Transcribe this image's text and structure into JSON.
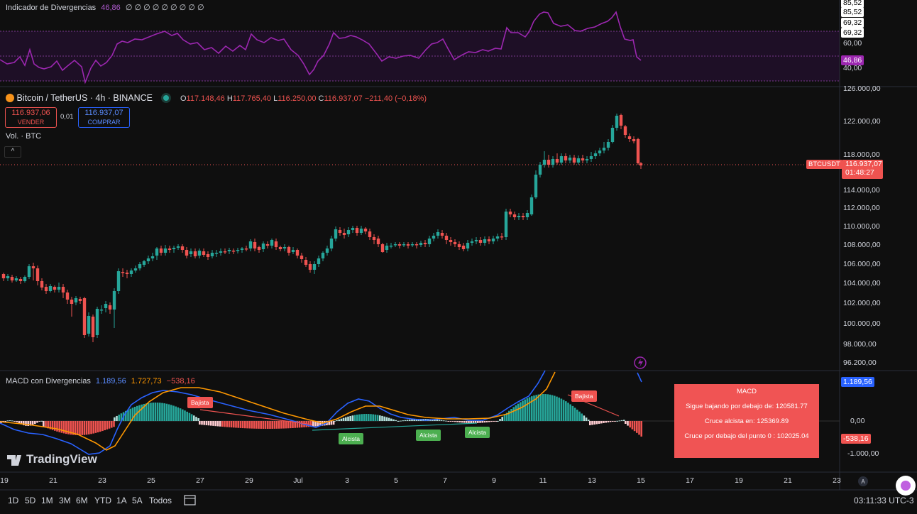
{
  "rsi_panel": {
    "title": "Indicador de Divergencias",
    "value": "46,86",
    "placeholders": "∅ ∅ ∅ ∅ ∅ ∅ ∅ ∅ ∅",
    "axis_labels": [
      "85,52",
      "85,52",
      "69,32",
      "69,32",
      "60,00",
      "46,86",
      "40,00"
    ],
    "current_tag": "46,86",
    "line_color": "#9c27b0"
  },
  "symbol_header": {
    "symbol": "Bitcoin / TetherUS · 4h · BINANCE",
    "open_label": "O",
    "open": "117.148,46",
    "high_label": "H",
    "high": "117.765,40",
    "low_label": "L",
    "low": "116.250,00",
    "close_label": "C",
    "close": "116.937,07",
    "change": "−211,40 (−0,18%)"
  },
  "trade_buttons": {
    "sell_price": "116.937,06",
    "sell_label": "VENDER",
    "spread": "0,01",
    "buy_price": "116.937,07",
    "buy_label": "COMPRAR"
  },
  "volume_label": "Vol. · BTC",
  "collapse_icon": "chevron-up-icon",
  "price_axis": {
    "labels": [
      "126.000,00",
      "122.000,00",
      "118.000,00",
      "114.000,00",
      "112.000,00",
      "110.000,00",
      "108.000,00",
      "106.000,00",
      "104.000,00",
      "102.000,00",
      "100.000,00",
      "98.000,00",
      "96.200,00"
    ],
    "symbol_tag": "BTCUSDT",
    "current_price": "116.937,07",
    "countdown": "01:48:27"
  },
  "macd_panel": {
    "title": "MACD con Divergencias",
    "macd_value": "1.189,56",
    "signal_value": "1.727,73",
    "hist_value": "−538,16",
    "axis_labels": [
      "1.189,56",
      "0,00",
      "-538,16",
      "-1.000,00"
    ],
    "signals": [
      {
        "text": "Bajista"
      },
      {
        "text": "Alcista"
      },
      {
        "text": "Alcista"
      },
      {
        "text": "Alcista"
      },
      {
        "text": "Bajista"
      }
    ],
    "info_box": {
      "title": "MACD",
      "line1": "Sigue bajando por debajo de: 120581.77",
      "line2": "Cruce alcista en: 125369.89",
      "line3": "Cruce por debajo del punto 0 : 102025.04"
    }
  },
  "time_axis": [
    "19",
    "21",
    "23",
    "25",
    "27",
    "29",
    "Jul",
    "3",
    "5",
    "7",
    "9",
    "11",
    "13",
    "15",
    "17",
    "19",
    "21",
    "23"
  ],
  "timeframes": [
    "1D",
    "5D",
    "1M",
    "3M",
    "6M",
    "YTD",
    "1A",
    "5A",
    "Todos"
  ],
  "clock": "03:11:33 UTC-3",
  "logo": "TradingView",
  "colors": {
    "up": "#26a69a",
    "down": "#ef5350",
    "macd_line": "#2962ff",
    "signal_line": "#ff9800",
    "background": "#0f0f0f"
  }
}
